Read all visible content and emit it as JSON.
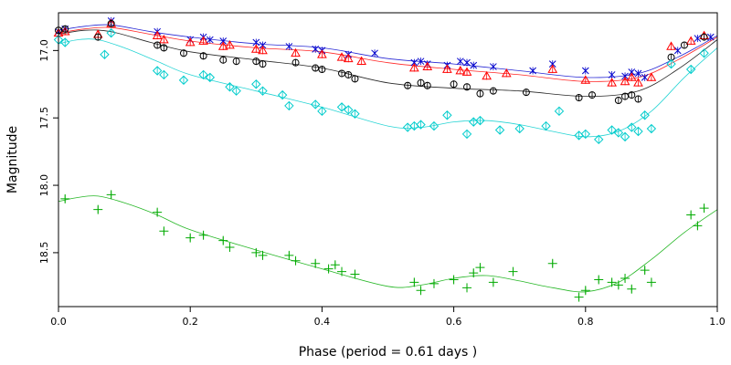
{
  "chart_data": {
    "type": "scatter",
    "title": "",
    "xlabel": "Phase (period = 0.61 days )",
    "ylabel": "Magnitude",
    "xlim": [
      0,
      1
    ],
    "ylim": [
      18.9,
      16.72
    ],
    "y_reversed": true,
    "grid": false,
    "xticks": [
      0.0,
      0.2,
      0.4,
      0.6,
      0.8,
      1.0
    ],
    "xtick_labels": [
      "0.0",
      "0.2",
      "0.4",
      "0.6",
      "0.8",
      "1.0"
    ],
    "yticks": [
      17.0,
      17.5,
      18.0,
      18.5
    ],
    "ytick_labels": [
      "17.0",
      "17.5",
      "18.0",
      "18.5"
    ],
    "series": [
      {
        "color": "#0000cc",
        "marker": "x",
        "curve": [
          [
            0.0,
            16.85
          ],
          [
            0.04,
            16.82
          ],
          [
            0.08,
            16.81
          ],
          [
            0.14,
            16.86
          ],
          [
            0.2,
            16.9
          ],
          [
            0.3,
            16.95
          ],
          [
            0.4,
            16.98
          ],
          [
            0.5,
            17.06
          ],
          [
            0.6,
            17.1
          ],
          [
            0.7,
            17.15
          ],
          [
            0.8,
            17.2
          ],
          [
            0.88,
            17.17
          ],
          [
            0.94,
            17.05
          ],
          [
            1.0,
            16.89
          ]
        ],
        "points": [
          [
            0.0,
            16.86
          ],
          [
            0.01,
            16.84
          ],
          [
            0.08,
            16.78
          ],
          [
            0.15,
            16.86
          ],
          [
            0.2,
            16.92
          ],
          [
            0.22,
            16.9
          ],
          [
            0.23,
            16.92
          ],
          [
            0.25,
            16.93
          ],
          [
            0.3,
            16.94
          ],
          [
            0.31,
            16.96
          ],
          [
            0.35,
            16.97
          ],
          [
            0.39,
            16.99
          ],
          [
            0.4,
            17.0
          ],
          [
            0.44,
            17.03
          ],
          [
            0.48,
            17.02
          ],
          [
            0.54,
            17.09
          ],
          [
            0.55,
            17.08
          ],
          [
            0.56,
            17.1
          ],
          [
            0.59,
            17.11
          ],
          [
            0.61,
            17.08
          ],
          [
            0.62,
            17.09
          ],
          [
            0.63,
            17.11
          ],
          [
            0.66,
            17.12
          ],
          [
            0.72,
            17.15
          ],
          [
            0.75,
            17.1
          ],
          [
            0.8,
            17.15
          ],
          [
            0.84,
            17.18
          ],
          [
            0.86,
            17.19
          ],
          [
            0.87,
            17.16
          ],
          [
            0.88,
            17.17
          ],
          [
            0.89,
            17.2
          ],
          [
            0.94,
            17.0
          ],
          [
            0.97,
            16.91
          ],
          [
            0.99,
            16.9
          ]
        ]
      },
      {
        "color": "#ff0000",
        "marker": "triangle",
        "curve": [
          [
            0.0,
            16.87
          ],
          [
            0.04,
            16.84
          ],
          [
            0.08,
            16.83
          ],
          [
            0.14,
            16.88
          ],
          [
            0.2,
            16.93
          ],
          [
            0.3,
            16.98
          ],
          [
            0.4,
            17.01
          ],
          [
            0.5,
            17.09
          ],
          [
            0.6,
            17.14
          ],
          [
            0.7,
            17.18
          ],
          [
            0.8,
            17.23
          ],
          [
            0.88,
            17.2
          ],
          [
            0.94,
            17.07
          ],
          [
            1.0,
            16.9
          ]
        ],
        "points": [
          [
            0.0,
            16.87
          ],
          [
            0.01,
            16.86
          ],
          [
            0.06,
            16.88
          ],
          [
            0.08,
            16.8
          ],
          [
            0.15,
            16.89
          ],
          [
            0.16,
            16.92
          ],
          [
            0.2,
            16.94
          ],
          [
            0.22,
            16.93
          ],
          [
            0.25,
            16.97
          ],
          [
            0.26,
            16.96
          ],
          [
            0.3,
            16.99
          ],
          [
            0.31,
            17.0
          ],
          [
            0.36,
            17.02
          ],
          [
            0.4,
            17.03
          ],
          [
            0.43,
            17.05
          ],
          [
            0.44,
            17.06
          ],
          [
            0.46,
            17.08
          ],
          [
            0.54,
            17.13
          ],
          [
            0.56,
            17.12
          ],
          [
            0.59,
            17.14
          ],
          [
            0.61,
            17.15
          ],
          [
            0.62,
            17.16
          ],
          [
            0.65,
            17.19
          ],
          [
            0.68,
            17.17
          ],
          [
            0.75,
            17.14
          ],
          [
            0.8,
            17.22
          ],
          [
            0.84,
            17.24
          ],
          [
            0.86,
            17.23
          ],
          [
            0.87,
            17.2
          ],
          [
            0.88,
            17.24
          ],
          [
            0.9,
            17.2
          ],
          [
            0.93,
            16.97
          ],
          [
            0.96,
            16.93
          ],
          [
            0.98,
            16.89
          ]
        ]
      },
      {
        "color": "#000000",
        "marker": "circle",
        "curve": [
          [
            0.0,
            16.88
          ],
          [
            0.04,
            16.85
          ],
          [
            0.08,
            16.86
          ],
          [
            0.14,
            16.94
          ],
          [
            0.2,
            17.01
          ],
          [
            0.3,
            17.07
          ],
          [
            0.4,
            17.13
          ],
          [
            0.5,
            17.24
          ],
          [
            0.6,
            17.28
          ],
          [
            0.7,
            17.3
          ],
          [
            0.8,
            17.34
          ],
          [
            0.88,
            17.3
          ],
          [
            0.94,
            17.14
          ],
          [
            1.0,
            16.92
          ]
        ],
        "points": [
          [
            0.0,
            16.85
          ],
          [
            0.01,
            16.84
          ],
          [
            0.06,
            16.9
          ],
          [
            0.08,
            16.8
          ],
          [
            0.15,
            16.96
          ],
          [
            0.16,
            16.98
          ],
          [
            0.19,
            17.02
          ],
          [
            0.22,
            17.04
          ],
          [
            0.25,
            17.07
          ],
          [
            0.27,
            17.08
          ],
          [
            0.3,
            17.08
          ],
          [
            0.31,
            17.1
          ],
          [
            0.36,
            17.09
          ],
          [
            0.39,
            17.13
          ],
          [
            0.4,
            17.14
          ],
          [
            0.43,
            17.17
          ],
          [
            0.44,
            17.18
          ],
          [
            0.45,
            17.21
          ],
          [
            0.53,
            17.26
          ],
          [
            0.55,
            17.24
          ],
          [
            0.56,
            17.26
          ],
          [
            0.6,
            17.25
          ],
          [
            0.62,
            17.27
          ],
          [
            0.64,
            17.32
          ],
          [
            0.66,
            17.3
          ],
          [
            0.71,
            17.31
          ],
          [
            0.79,
            17.35
          ],
          [
            0.81,
            17.33
          ],
          [
            0.85,
            17.37
          ],
          [
            0.86,
            17.34
          ],
          [
            0.87,
            17.33
          ],
          [
            0.88,
            17.36
          ],
          [
            0.93,
            17.05
          ],
          [
            0.95,
            16.96
          ],
          [
            0.98,
            16.9
          ]
        ]
      },
      {
        "color": "#00cccc",
        "marker": "diamond",
        "curve": [
          [
            0.0,
            16.95
          ],
          [
            0.03,
            16.92
          ],
          [
            0.06,
            16.92
          ],
          [
            0.1,
            16.98
          ],
          [
            0.15,
            17.08
          ],
          [
            0.2,
            17.18
          ],
          [
            0.3,
            17.3
          ],
          [
            0.4,
            17.42
          ],
          [
            0.5,
            17.56
          ],
          [
            0.55,
            17.57
          ],
          [
            0.6,
            17.53
          ],
          [
            0.65,
            17.52
          ],
          [
            0.7,
            17.55
          ],
          [
            0.75,
            17.6
          ],
          [
            0.8,
            17.64
          ],
          [
            0.85,
            17.6
          ],
          [
            0.9,
            17.45
          ],
          [
            0.95,
            17.2
          ],
          [
            1.0,
            16.98
          ]
        ],
        "points": [
          [
            0.0,
            16.92
          ],
          [
            0.01,
            16.94
          ],
          [
            0.07,
            17.03
          ],
          [
            0.08,
            16.87
          ],
          [
            0.15,
            17.15
          ],
          [
            0.16,
            17.18
          ],
          [
            0.19,
            17.22
          ],
          [
            0.22,
            17.18
          ],
          [
            0.23,
            17.2
          ],
          [
            0.26,
            17.27
          ],
          [
            0.27,
            17.3
          ],
          [
            0.3,
            17.25
          ],
          [
            0.31,
            17.3
          ],
          [
            0.34,
            17.33
          ],
          [
            0.35,
            17.41
          ],
          [
            0.39,
            17.4
          ],
          [
            0.4,
            17.45
          ],
          [
            0.43,
            17.42
          ],
          [
            0.44,
            17.44
          ],
          [
            0.45,
            17.47
          ],
          [
            0.53,
            17.57
          ],
          [
            0.54,
            17.56
          ],
          [
            0.55,
            17.55
          ],
          [
            0.57,
            17.56
          ],
          [
            0.59,
            17.48
          ],
          [
            0.62,
            17.62
          ],
          [
            0.63,
            17.53
          ],
          [
            0.64,
            17.52
          ],
          [
            0.67,
            17.59
          ],
          [
            0.7,
            17.58
          ],
          [
            0.74,
            17.56
          ],
          [
            0.76,
            17.45
          ],
          [
            0.79,
            17.63
          ],
          [
            0.8,
            17.62
          ],
          [
            0.82,
            17.66
          ],
          [
            0.84,
            17.59
          ],
          [
            0.85,
            17.61
          ],
          [
            0.86,
            17.64
          ],
          [
            0.87,
            17.57
          ],
          [
            0.88,
            17.6
          ],
          [
            0.89,
            17.48
          ],
          [
            0.9,
            17.58
          ],
          [
            0.93,
            17.1
          ],
          [
            0.96,
            17.14
          ],
          [
            0.98,
            17.02
          ]
        ]
      },
      {
        "color": "#00aa00",
        "marker": "plus",
        "curve": [
          [
            0.0,
            18.12
          ],
          [
            0.03,
            18.09
          ],
          [
            0.06,
            18.08
          ],
          [
            0.1,
            18.13
          ],
          [
            0.15,
            18.22
          ],
          [
            0.2,
            18.33
          ],
          [
            0.3,
            18.48
          ],
          [
            0.4,
            18.62
          ],
          [
            0.5,
            18.75
          ],
          [
            0.55,
            18.74
          ],
          [
            0.6,
            18.69
          ],
          [
            0.65,
            18.67
          ],
          [
            0.7,
            18.71
          ],
          [
            0.75,
            18.76
          ],
          [
            0.8,
            18.79
          ],
          [
            0.85,
            18.72
          ],
          [
            0.9,
            18.55
          ],
          [
            0.95,
            18.35
          ],
          [
            1.0,
            18.18
          ]
        ],
        "points": [
          [
            0.01,
            18.1
          ],
          [
            0.06,
            18.18
          ],
          [
            0.08,
            18.07
          ],
          [
            0.15,
            18.2
          ],
          [
            0.16,
            18.34
          ],
          [
            0.2,
            18.39
          ],
          [
            0.22,
            18.37
          ],
          [
            0.25,
            18.41
          ],
          [
            0.26,
            18.46
          ],
          [
            0.3,
            18.5
          ],
          [
            0.31,
            18.52
          ],
          [
            0.35,
            18.52
          ],
          [
            0.36,
            18.56
          ],
          [
            0.39,
            18.58
          ],
          [
            0.41,
            18.62
          ],
          [
            0.42,
            18.59
          ],
          [
            0.43,
            18.64
          ],
          [
            0.45,
            18.66
          ],
          [
            0.54,
            18.72
          ],
          [
            0.55,
            18.78
          ],
          [
            0.57,
            18.73
          ],
          [
            0.6,
            18.7
          ],
          [
            0.62,
            18.76
          ],
          [
            0.63,
            18.65
          ],
          [
            0.64,
            18.61
          ],
          [
            0.66,
            18.72
          ],
          [
            0.69,
            18.64
          ],
          [
            0.75,
            18.58
          ],
          [
            0.79,
            18.83
          ],
          [
            0.8,
            18.78
          ],
          [
            0.82,
            18.7
          ],
          [
            0.84,
            18.72
          ],
          [
            0.85,
            18.74
          ],
          [
            0.86,
            18.69
          ],
          [
            0.87,
            18.77
          ],
          [
            0.89,
            18.63
          ],
          [
            0.9,
            18.72
          ],
          [
            0.96,
            18.22
          ],
          [
            0.97,
            18.3
          ],
          [
            0.98,
            18.17
          ]
        ]
      }
    ]
  }
}
